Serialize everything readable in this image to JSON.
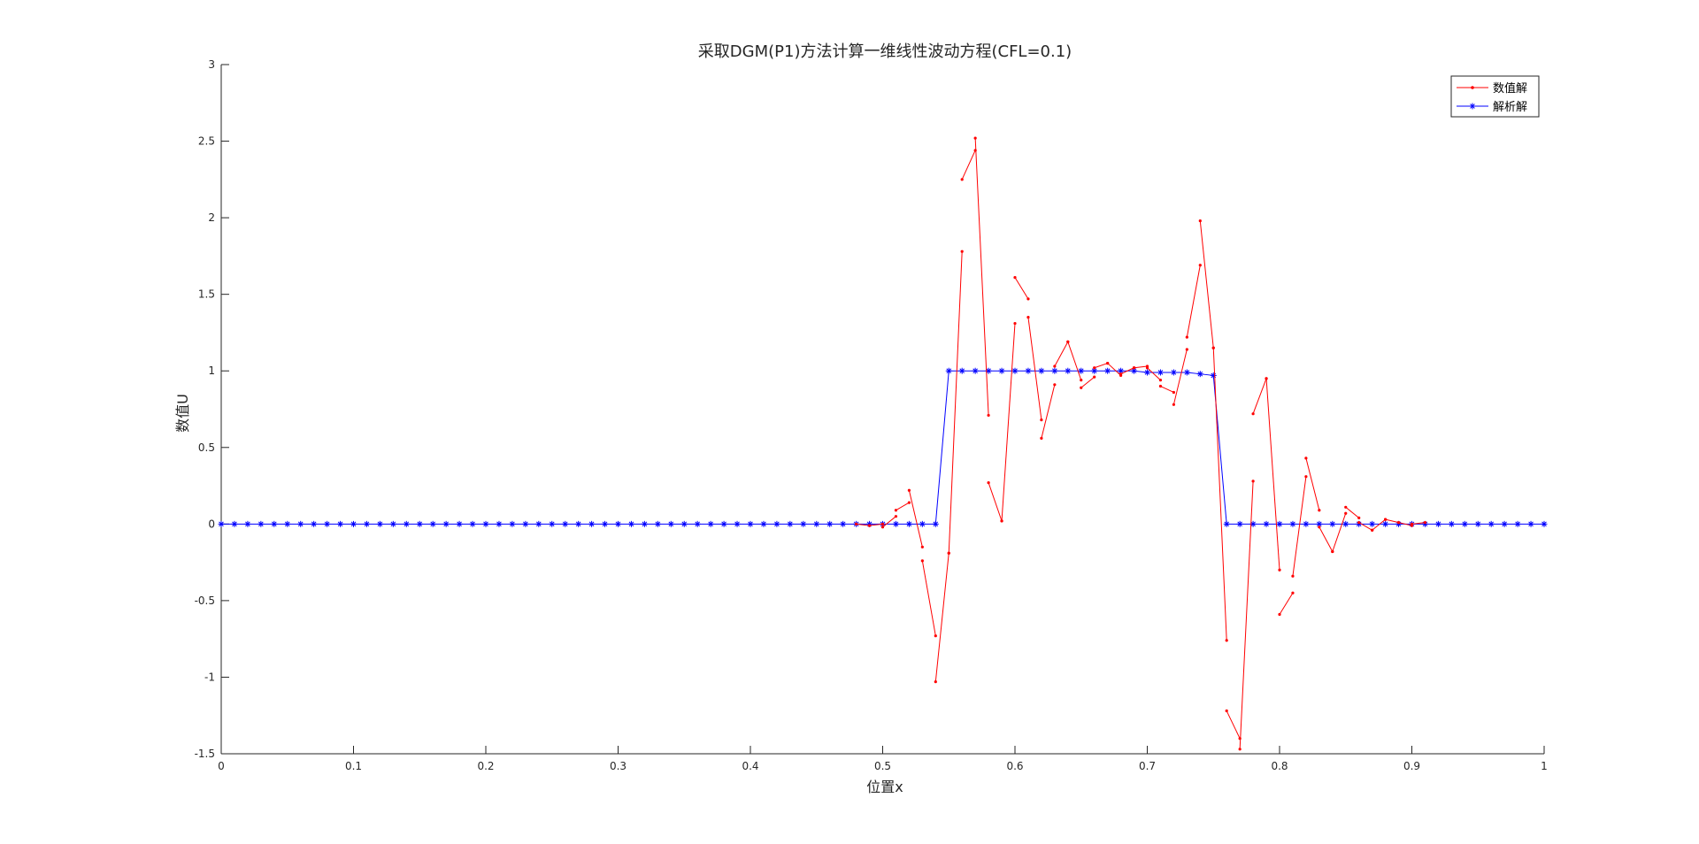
{
  "chart_data": {
    "type": "line",
    "title": "采取DGM(P1)方法计算一维线性波动方程(CFL=0.1)",
    "xlabel": "位置x",
    "ylabel": "数值U",
    "xlim": [
      0,
      1
    ],
    "ylim": [
      -1.5,
      3
    ],
    "xticks": [
      0,
      0.1,
      0.2,
      0.3,
      0.4,
      0.5,
      0.6,
      0.7,
      0.8,
      0.9,
      1
    ],
    "xtick_labels": [
      "0",
      "0.1",
      "0.2",
      "0.3",
      "0.4",
      "0.5",
      "0.6",
      "0.7",
      "0.8",
      "0.9",
      "1"
    ],
    "yticks": [
      -1.5,
      -1,
      -0.5,
      0,
      0.5,
      1,
      1.5,
      2,
      2.5,
      3
    ],
    "ytick_labels": [
      "-1.5",
      "-1",
      "-0.5",
      "0",
      "0.5",
      "1",
      "1.5",
      "2",
      "2.5",
      "3"
    ],
    "grid": false,
    "legend_position": "top-right",
    "legend": [
      "数值解",
      "解析解"
    ],
    "series": [
      {
        "name": "数值解",
        "color": "#ff0000",
        "marker": "dot",
        "note": "discontinuous DG P1 solution, one segment per cell",
        "segments": [
          [
            [
              0.48,
              0.0
            ],
            [
              0.49,
              -0.01
            ]
          ],
          [
            [
              0.49,
              -0.01
            ],
            [
              0.5,
              0.0
            ]
          ],
          [
            [
              0.5,
              -0.02
            ],
            [
              0.51,
              0.05
            ]
          ],
          [
            [
              0.51,
              0.09
            ],
            [
              0.52,
              0.14
            ]
          ],
          [
            [
              0.52,
              0.22
            ],
            [
              0.53,
              -0.15
            ]
          ],
          [
            [
              0.53,
              -0.24
            ],
            [
              0.54,
              -0.73
            ]
          ],
          [
            [
              0.54,
              -1.03
            ],
            [
              0.55,
              -0.19
            ]
          ],
          [
            [
              0.55,
              -0.19
            ],
            [
              0.56,
              1.78
            ]
          ],
          [
            [
              0.56,
              2.25
            ],
            [
              0.57,
              2.44
            ]
          ],
          [
            [
              0.57,
              2.52
            ],
            [
              0.58,
              0.71
            ]
          ],
          [
            [
              0.58,
              0.27
            ],
            [
              0.59,
              0.02
            ]
          ],
          [
            [
              0.59,
              0.02
            ],
            [
              0.6,
              1.31
            ]
          ],
          [
            [
              0.6,
              1.61
            ],
            [
              0.61,
              1.47
            ]
          ],
          [
            [
              0.61,
              1.35
            ],
            [
              0.62,
              0.68
            ]
          ],
          [
            [
              0.62,
              0.56
            ],
            [
              0.63,
              0.91
            ]
          ],
          [
            [
              0.63,
              1.03
            ],
            [
              0.64,
              1.19
            ]
          ],
          [
            [
              0.64,
              1.19
            ],
            [
              0.65,
              0.94
            ]
          ],
          [
            [
              0.65,
              0.89
            ],
            [
              0.66,
              0.96
            ]
          ],
          [
            [
              0.66,
              1.02
            ],
            [
              0.67,
              1.05
            ]
          ],
          [
            [
              0.67,
              1.05
            ],
            [
              0.68,
              0.97
            ]
          ],
          [
            [
              0.68,
              0.98
            ],
            [
              0.69,
              1.02
            ]
          ],
          [
            [
              0.69,
              1.02
            ],
            [
              0.7,
              1.03
            ]
          ],
          [
            [
              0.7,
              1.02
            ],
            [
              0.71,
              0.94
            ]
          ],
          [
            [
              0.71,
              0.9
            ],
            [
              0.72,
              0.86
            ]
          ],
          [
            [
              0.72,
              0.78
            ],
            [
              0.73,
              1.14
            ]
          ],
          [
            [
              0.73,
              1.22
            ],
            [
              0.74,
              1.69
            ]
          ],
          [
            [
              0.74,
              1.98
            ],
            [
              0.75,
              1.15
            ]
          ],
          [
            [
              0.75,
              1.15
            ],
            [
              0.76,
              -0.76
            ]
          ],
          [
            [
              0.76,
              -1.22
            ],
            [
              0.77,
              -1.4
            ]
          ],
          [
            [
              0.77,
              -1.47
            ],
            [
              0.78,
              0.28
            ]
          ],
          [
            [
              0.78,
              0.72
            ],
            [
              0.79,
              0.95
            ]
          ],
          [
            [
              0.79,
              0.95
            ],
            [
              0.8,
              -0.3
            ]
          ],
          [
            [
              0.8,
              -0.59
            ],
            [
              0.81,
              -0.45
            ]
          ],
          [
            [
              0.81,
              -0.34
            ],
            [
              0.82,
              0.31
            ]
          ],
          [
            [
              0.82,
              0.43
            ],
            [
              0.83,
              0.09
            ]
          ],
          [
            [
              0.83,
              -0.02
            ],
            [
              0.84,
              -0.18
            ]
          ],
          [
            [
              0.84,
              -0.18
            ],
            [
              0.85,
              0.07
            ]
          ],
          [
            [
              0.85,
              0.11
            ],
            [
              0.86,
              0.04
            ]
          ],
          [
            [
              0.86,
              0.01
            ],
            [
              0.87,
              -0.04
            ]
          ],
          [
            [
              0.87,
              -0.04
            ],
            [
              0.88,
              0.03
            ]
          ],
          [
            [
              0.88,
              0.03
            ],
            [
              0.89,
              0.01
            ]
          ],
          [
            [
              0.89,
              0.01
            ],
            [
              0.9,
              -0.01
            ]
          ],
          [
            [
              0.9,
              0.0
            ],
            [
              0.91,
              0.01
            ]
          ]
        ]
      },
      {
        "name": "解析解",
        "color": "#0000ff",
        "marker": "asterisk",
        "x": [
          0,
          0.01,
          0.02,
          0.03,
          0.04,
          0.05,
          0.06,
          0.07,
          0.08,
          0.09,
          0.1,
          0.11,
          0.12,
          0.13,
          0.14,
          0.15,
          0.16,
          0.17,
          0.18,
          0.19,
          0.2,
          0.21,
          0.22,
          0.23,
          0.24,
          0.25,
          0.26,
          0.27,
          0.28,
          0.29,
          0.3,
          0.31,
          0.32,
          0.33,
          0.34,
          0.35,
          0.36,
          0.37,
          0.38,
          0.39,
          0.4,
          0.41,
          0.42,
          0.43,
          0.44,
          0.45,
          0.46,
          0.47,
          0.48,
          0.49,
          0.5,
          0.51,
          0.52,
          0.53,
          0.54,
          0.55,
          0.56,
          0.57,
          0.58,
          0.59,
          0.6,
          0.61,
          0.62,
          0.63,
          0.64,
          0.65,
          0.66,
          0.67,
          0.68,
          0.69,
          0.7,
          0.71,
          0.72,
          0.73,
          0.74,
          0.75,
          0.76,
          0.77,
          0.78,
          0.79,
          0.8,
          0.81,
          0.82,
          0.83,
          0.84,
          0.85,
          0.86,
          0.87,
          0.88,
          0.89,
          0.9,
          0.91,
          0.92,
          0.93,
          0.94,
          0.95,
          0.96,
          0.97,
          0.98,
          0.99,
          1
        ],
        "y": [
          0,
          0,
          0,
          0,
          0,
          0,
          0,
          0,
          0,
          0,
          0,
          0,
          0,
          0,
          0,
          0,
          0,
          0,
          0,
          0,
          0,
          0,
          0,
          0,
          0,
          0,
          0,
          0,
          0,
          0,
          0,
          0,
          0,
          0,
          0,
          0,
          0,
          0,
          0,
          0,
          0,
          0,
          0,
          0,
          0,
          0,
          0,
          0,
          0,
          0,
          0,
          0,
          0,
          0,
          0,
          1,
          1,
          1,
          1,
          1,
          1,
          1,
          1,
          1,
          1,
          1,
          1,
          1,
          1,
          1,
          0.99,
          0.99,
          0.99,
          0.99,
          0.98,
          0.97,
          0,
          0,
          0,
          0,
          0,
          0,
          0,
          0,
          0,
          0,
          0,
          0,
          0,
          0,
          0,
          0,
          0,
          0,
          0,
          0,
          0,
          0,
          0,
          0,
          0
        ]
      }
    ]
  }
}
